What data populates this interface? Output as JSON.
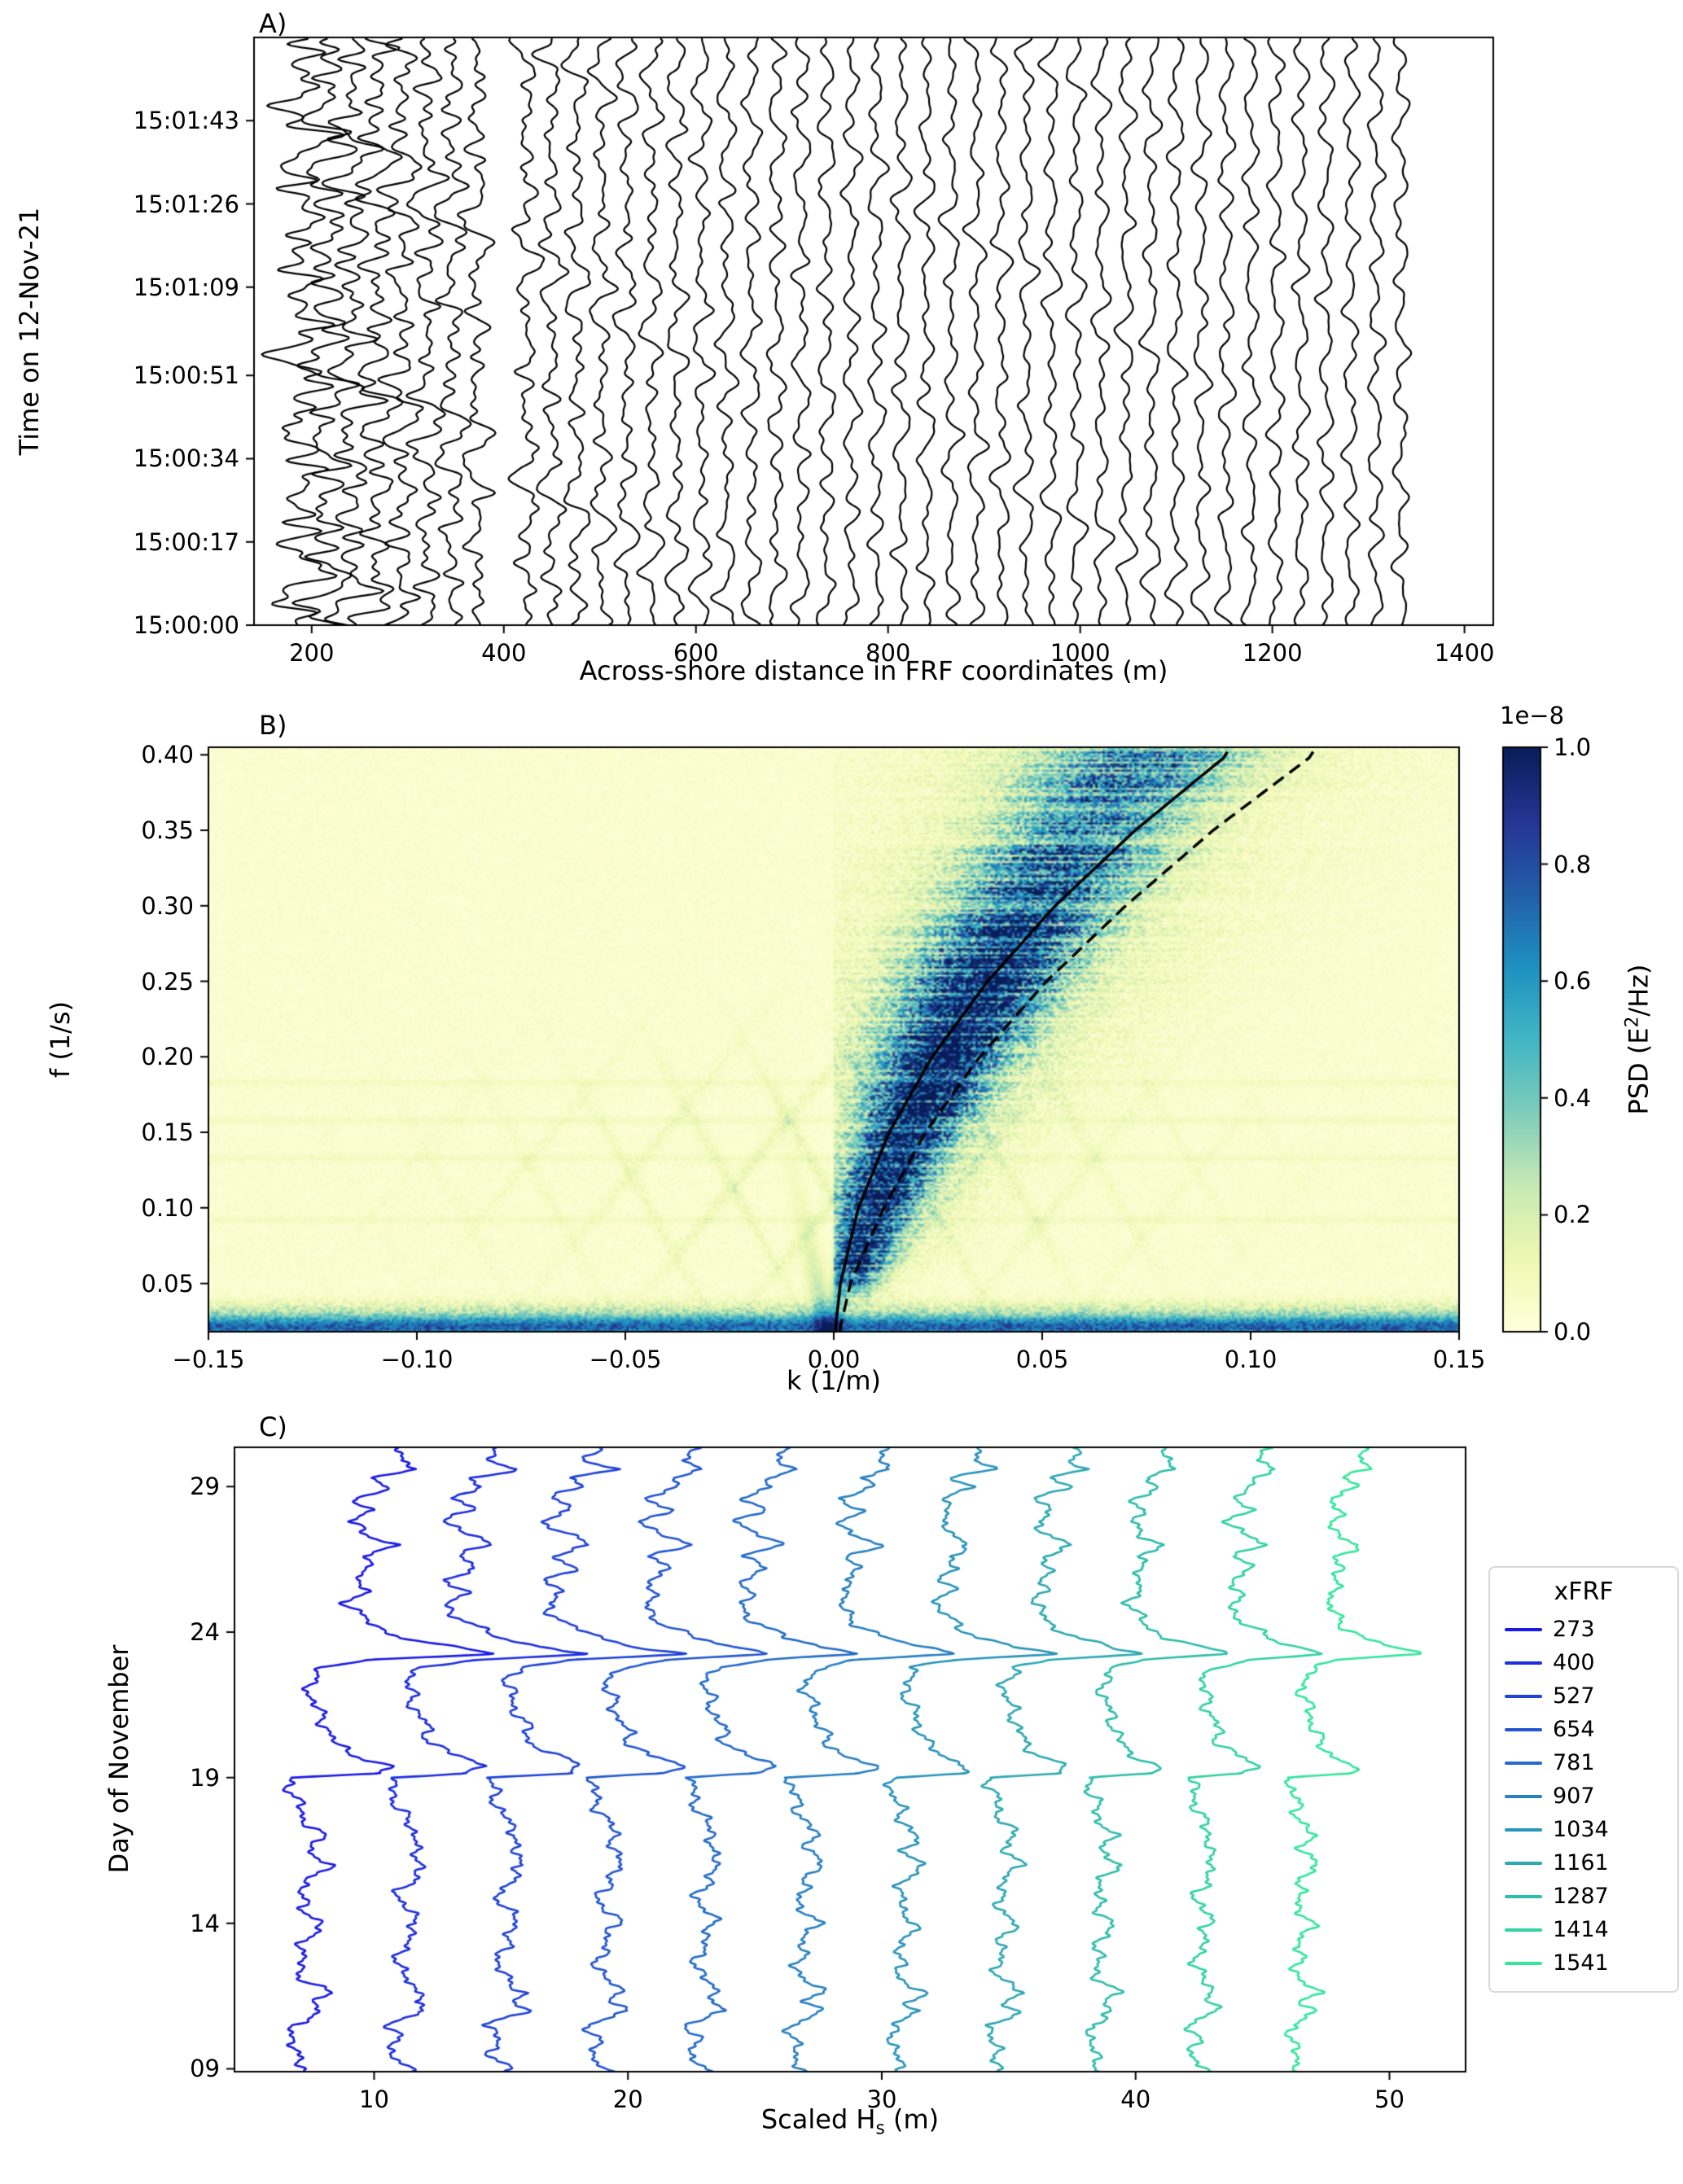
{
  "panels": {
    "a": {
      "label": "A)"
    },
    "b": {
      "label": "B)"
    },
    "c": {
      "label": "C)"
    }
  },
  "chart_data": [
    {
      "id": "A",
      "type": "line",
      "subtype": "wiggle-trace-waterfall",
      "xlabel": "Across-shore distance in FRF coordinates (m)",
      "ylabel": "Time on 12-Nov-21",
      "xlim": [
        140,
        1430
      ],
      "ylim_seconds": [
        0,
        120
      ],
      "x_ticks": [
        200,
        400,
        600,
        800,
        1000,
        1200,
        1400
      ],
      "x_tick_labels": [
        "200",
        "400",
        "600",
        "800",
        "1000",
        "1200",
        "1400"
      ],
      "y_ticks_seconds": [
        0,
        17,
        34,
        51,
        69,
        86,
        103
      ],
      "y_tick_labels": [
        "15:00:00",
        "15:00:17",
        "15:00:34",
        "15:00:51",
        "15:01:09",
        "15:01:26",
        "15:01:43"
      ],
      "line_color": "#000000",
      "traces": {
        "x_start": 190,
        "x_end": 1352,
        "spacing": 26,
        "gap": [
          380,
          420
        ]
      },
      "amplitude": {
        "base": 12,
        "shore_extra": 20,
        "decay_m": 170
      },
      "wave_components": {
        "freqs": [
          0.058,
          0.079,
          0.101,
          0.124,
          0.149,
          0.176,
          0.208
        ],
        "amps": [
          1,
          0.9,
          0.78,
          0.64,
          0.5,
          0.37,
          0.26
        ]
      }
    },
    {
      "id": "B",
      "type": "heatmap",
      "xlabel": "k (1/m)",
      "ylabel": "f (1/s)",
      "xlim": [
        -0.15,
        0.15
      ],
      "ylim": [
        0.018,
        0.405
      ],
      "x_ticks": [
        -0.15,
        -0.1,
        -0.05,
        0,
        0.05,
        0.1,
        0.15
      ],
      "x_tick_labels": [
        "−0.15",
        "−0.10",
        "−0.05",
        "0.00",
        "0.05",
        "0.10",
        "0.15"
      ],
      "y_ticks": [
        0.05,
        0.1,
        0.15,
        0.2,
        0.25,
        0.3,
        0.35,
        0.4
      ],
      "y_tick_labels": [
        "0.05",
        "0.10",
        "0.15",
        "0.20",
        "0.25",
        "0.30",
        "0.35",
        "0.40"
      ],
      "colormap_stops": [
        "#ffffd9",
        "#edf8b1",
        "#c7e9b4",
        "#7fcdbb",
        "#41b6c4",
        "#1d91c0",
        "#225ea8",
        "#253494",
        "#081d58"
      ],
      "colorbar": {
        "scale_label": "1e−8",
        "axis_label": "PSD (E²/Hz)",
        "label_pre": "PSD (E",
        "label_sup": "2",
        "label_post": "/Hz)",
        "ticks": [
          0,
          0.2,
          0.4,
          0.6,
          0.8,
          1
        ],
        "tick_labels": [
          "0.0",
          "0.2",
          "0.4",
          "0.6",
          "0.8",
          "1.0"
        ]
      },
      "curves": [
        {
          "style": "solid",
          "points": [
            [
              0.02,
              0.0004
            ],
            [
              0.05,
              0.0016
            ],
            [
              0.1,
              0.0059
            ],
            [
              0.15,
              0.0133
            ],
            [
              0.2,
              0.0236
            ],
            [
              0.25,
              0.0369
            ],
            [
              0.3,
              0.0531
            ],
            [
              0.35,
              0.0723
            ],
            [
              0.4,
              0.0944
            ]
          ]
        },
        {
          "style": "dashed",
          "points": [
            [
              0.02,
              0.0015
            ],
            [
              0.05,
              0.004
            ],
            [
              0.1,
              0.012
            ],
            [
              0.15,
              0.022
            ],
            [
              0.2,
              0.035
            ],
            [
              0.25,
              0.051
            ],
            [
              0.3,
              0.07
            ],
            [
              0.35,
              0.091
            ],
            [
              0.4,
              0.115
            ]
          ]
        }
      ],
      "streak_frequencies": [
        0.092,
        0.133,
        0.158,
        0.183
      ]
    },
    {
      "id": "C",
      "type": "line",
      "xlabel": "Scaled Hs (m)",
      "xlabel_pre": "Scaled H",
      "xlabel_sub": "s",
      "xlabel_post": " (m)",
      "ylabel": "Day of November",
      "xlim": [
        4.5,
        53
      ],
      "ylim_days": [
        8.9,
        30.35
      ],
      "x_ticks": [
        10,
        20,
        30,
        40,
        50
      ],
      "x_tick_labels": [
        "10",
        "20",
        "30",
        "40",
        "50"
      ],
      "y_ticks": [
        9,
        14,
        19,
        24,
        29
      ],
      "y_tick_labels": [
        "09",
        "14",
        "19",
        "24",
        "29"
      ],
      "legend": {
        "title": "xFRF",
        "values": [
          273,
          400,
          527,
          654,
          781,
          907,
          1034,
          1161,
          1287,
          1414,
          1541
        ]
      },
      "color_start": "#1a1ae6",
      "color_end": "#33e69c",
      "series_offsets": [
        5.2,
        9.2,
        13.2,
        17.2,
        21.2,
        25.2,
        29.2,
        33.2,
        37.2,
        41.2,
        45.2
      ],
      "peak_scale_by_series": [
        1.25,
        1.2,
        1.15,
        1.1,
        1.05,
        1,
        0.95,
        0.9,
        0.85,
        0.8,
        0.75
      ],
      "hs_shape": [
        [
          9,
          1.75
        ],
        [
          9.5,
          1.3
        ],
        [
          10,
          1.4
        ],
        [
          10.5,
          1.2
        ],
        [
          11,
          2.4
        ],
        [
          11.3,
          1.9
        ],
        [
          11.6,
          2.5
        ],
        [
          12,
          1.75
        ],
        [
          12.5,
          1.5
        ],
        [
          13,
          1.6
        ],
        [
          13.5,
          1.8
        ],
        [
          14,
          2.2
        ],
        [
          14.5,
          1.7
        ],
        [
          15,
          1.5
        ],
        [
          15.5,
          1.9
        ],
        [
          16,
          2.4
        ],
        [
          16.5,
          1.9
        ],
        [
          17,
          2.2
        ],
        [
          17.5,
          1.75
        ],
        [
          18,
          1.5
        ],
        [
          18.5,
          1.3
        ],
        [
          19,
          1.2
        ],
        [
          19.15,
          4.0
        ],
        [
          19.4,
          4.4
        ],
        [
          19.8,
          3.3
        ],
        [
          20.2,
          2.6
        ],
        [
          20.8,
          2.4
        ],
        [
          21.3,
          2.1
        ],
        [
          21.8,
          1.9
        ],
        [
          22.3,
          1.8
        ],
        [
          22.8,
          2.3
        ],
        [
          23.05,
          3.9
        ],
        [
          23.25,
          7.9
        ],
        [
          23.5,
          6.3
        ],
        [
          23.8,
          4.9
        ],
        [
          24.2,
          4.0
        ],
        [
          24.6,
          3.4
        ],
        [
          25,
          3.1
        ],
        [
          25.4,
          3.7
        ],
        [
          25.8,
          3.2
        ],
        [
          26.2,
          4.0
        ],
        [
          26.6,
          3.5
        ],
        [
          27,
          4.6
        ],
        [
          27.4,
          3.7
        ],
        [
          27.8,
          3.1
        ],
        [
          28.2,
          3.9
        ],
        [
          28.6,
          3.3
        ],
        [
          29,
          4.4
        ],
        [
          29.3,
          3.9
        ],
        [
          29.6,
          5.4
        ],
        [
          29.9,
          4.6
        ],
        [
          30.35,
          4.9
        ]
      ]
    }
  ]
}
